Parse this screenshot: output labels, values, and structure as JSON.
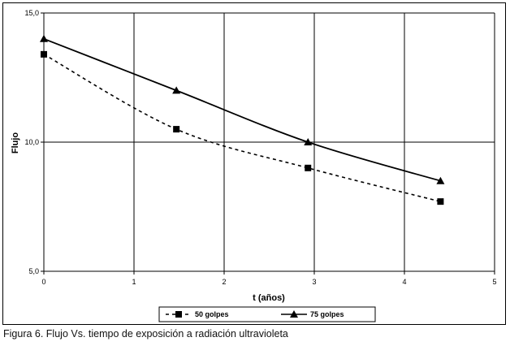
{
  "caption": "Figura 6. Flujo Vs. tiempo de exposición a radiación ultravioleta",
  "chart_data": {
    "type": "line",
    "title": "",
    "xlabel": "t (años)",
    "ylabel": "Flujo",
    "xlim": [
      0,
      5
    ],
    "ylim": [
      5,
      15
    ],
    "x_ticks": [
      0,
      1,
      2,
      3,
      4,
      5
    ],
    "x_tick_labels": [
      "0",
      "1",
      "2",
      "3",
      "4",
      "5"
    ],
    "y_ticks": [
      5,
      10,
      15
    ],
    "y_tick_labels": [
      "5,0",
      "10,0",
      "15,0"
    ],
    "grid": true,
    "legend_position": "bottom",
    "series": [
      {
        "name": "50 golpes",
        "x": [
          0,
          1.47,
          2.93,
          4.4
        ],
        "values": [
          13.4,
          10.5,
          9.0,
          7.7
        ],
        "marker": "square",
        "line_style": "dashed",
        "color": "#000000"
      },
      {
        "name": "75 golpes",
        "x": [
          0,
          1.47,
          2.93,
          4.4
        ],
        "values": [
          14.0,
          12.0,
          10.0,
          8.5
        ],
        "marker": "triangle",
        "line_style": "solid",
        "color": "#000000"
      }
    ]
  }
}
